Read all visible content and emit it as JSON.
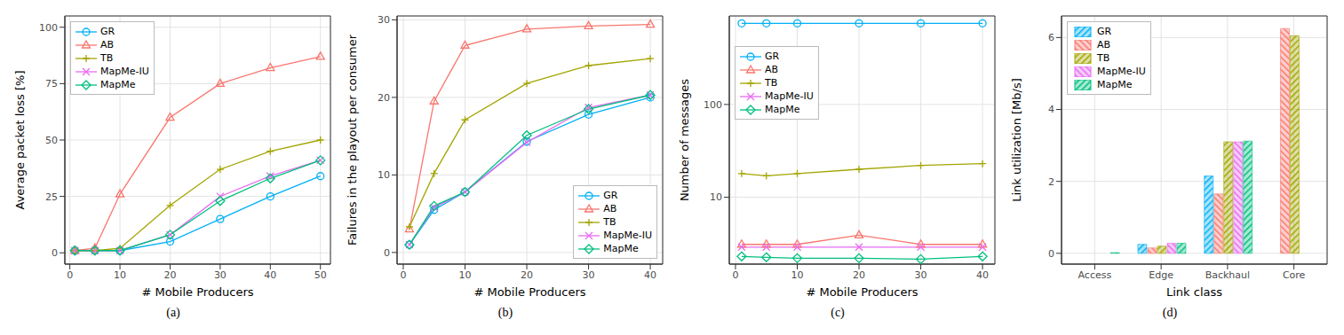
{
  "chart_data": [
    {
      "type": "line",
      "title": "(a)",
      "x_label": "# Mobile Producers",
      "y_label": "Average packet loss [%]",
      "x": [
        1,
        5,
        10,
        20,
        30,
        40,
        50
      ],
      "xlim": [
        -1,
        52
      ],
      "xticks": [
        0,
        10,
        20,
        30,
        40,
        50
      ],
      "ylim": [
        -5,
        105
      ],
      "yticks": [
        0,
        25,
        50,
        75,
        100
      ],
      "grid": true,
      "legend": "top-left",
      "series": [
        {
          "name": "GR",
          "color": "#00B0F6",
          "marker": "circle",
          "values": [
            1,
            1,
            1,
            5,
            15,
            25,
            34
          ]
        },
        {
          "name": "AB",
          "color": "#F8766D",
          "marker": "triangle",
          "values": [
            1,
            2,
            26,
            60,
            75,
            82,
            87
          ]
        },
        {
          "name": "TB",
          "color": "#A3A500",
          "marker": "plus",
          "values": [
            1,
            1,
            2,
            21,
            37,
            45,
            50
          ]
        },
        {
          "name": "MapMe-IU",
          "color": "#E76BF3",
          "marker": "x",
          "values": [
            1,
            1,
            1,
            8,
            25,
            34,
            41
          ]
        },
        {
          "name": "MapMe",
          "color": "#00BF7D",
          "marker": "diamond",
          "values": [
            1,
            1,
            1,
            8,
            23,
            33,
            41
          ]
        }
      ]
    },
    {
      "type": "line",
      "title": "(b)",
      "x_label": "# Mobile Producers",
      "y_label": "Failures in the playout per consumer",
      "x": [
        1,
        5,
        10,
        20,
        30,
        40
      ],
      "xlim": [
        -1,
        42
      ],
      "xticks": [
        0,
        10,
        20,
        30,
        40
      ],
      "ylim": [
        -1.5,
        30.5
      ],
      "yticks": [
        0,
        10,
        20,
        30
      ],
      "grid": true,
      "legend": "bottom-right",
      "series": [
        {
          "name": "GR",
          "color": "#00B0F6",
          "marker": "circle",
          "values": [
            1,
            5.5,
            7.8,
            14.3,
            17.8,
            20
          ]
        },
        {
          "name": "AB",
          "color": "#F8766D",
          "marker": "triangle",
          "values": [
            3,
            19.5,
            26.7,
            28.8,
            29.2,
            29.4
          ]
        },
        {
          "name": "TB",
          "color": "#A3A500",
          "marker": "plus",
          "values": [
            3.3,
            10.2,
            17.1,
            21.8,
            24.1,
            25
          ]
        },
        {
          "name": "MapMe-IU",
          "color": "#E76BF3",
          "marker": "x",
          "values": [
            1,
            5.8,
            7.8,
            14.2,
            18.7,
            20.3
          ]
        },
        {
          "name": "MapMe",
          "color": "#00BF7D",
          "marker": "diamond",
          "values": [
            1,
            6,
            7.8,
            15.1,
            18.5,
            20.3
          ]
        }
      ]
    },
    {
      "type": "line",
      "title": "(c)",
      "x_label": "# Mobile Producers",
      "y_label": "Number of messages",
      "x": [
        1,
        5,
        10,
        20,
        30,
        40
      ],
      "xlim": [
        -1,
        42
      ],
      "xticks": [
        0,
        10,
        20,
        30,
        40
      ],
      "ylim": [
        1.9,
        900
      ],
      "yticks": [
        10,
        100
      ],
      "log": "y",
      "grid": true,
      "legend": "top-left",
      "series": [
        {
          "name": "GR",
          "color": "#00B0F6",
          "marker": "circle",
          "values": [
            750,
            750,
            750,
            750,
            750,
            750
          ]
        },
        {
          "name": "AB",
          "color": "#F8766D",
          "marker": "triangle",
          "values": [
            3.1,
            3.1,
            3.1,
            3.9,
            3.1,
            3.1
          ]
        },
        {
          "name": "TB",
          "color": "#A3A500",
          "marker": "plus",
          "values": [
            18,
            17,
            18,
            20,
            22,
            23
          ]
        },
        {
          "name": "MapMe-IU",
          "color": "#E76BF3",
          "marker": "x",
          "values": [
            2.9,
            2.9,
            2.9,
            2.9,
            2.9,
            2.9
          ]
        },
        {
          "name": "MapMe",
          "color": "#00BF7D",
          "marker": "diamond",
          "values": [
            2.3,
            2.25,
            2.2,
            2.2,
            2.15,
            2.3
          ]
        }
      ]
    },
    {
      "type": "bar",
      "title": "(d)",
      "x_label": "Link class",
      "y_label": "Link utilization [Mb/s]",
      "categories": [
        "Access",
        "Edge",
        "Backhaul",
        "Core"
      ],
      "ylim": [
        -0.3,
        6.6
      ],
      "yticks": [
        0,
        2,
        4,
        6
      ],
      "grid": true,
      "legend": "top-left",
      "series": [
        {
          "name": "GR",
          "color": "#00B0F6",
          "values": [
            0,
            0.25,
            2.15,
            0
          ]
        },
        {
          "name": "AB",
          "color": "#F8766D",
          "values": [
            0,
            0.15,
            1.65,
            6.25
          ]
        },
        {
          "name": "TB",
          "color": "#A3A500",
          "values": [
            0,
            0.2,
            3.1,
            6.05
          ]
        },
        {
          "name": "MapMe-IU",
          "color": "#E76BF3",
          "values": [
            0,
            0.28,
            3.1,
            0
          ]
        },
        {
          "name": "MapMe",
          "color": "#00BF7D",
          "values": [
            0.02,
            0.28,
            3.12,
            0
          ]
        }
      ]
    }
  ]
}
